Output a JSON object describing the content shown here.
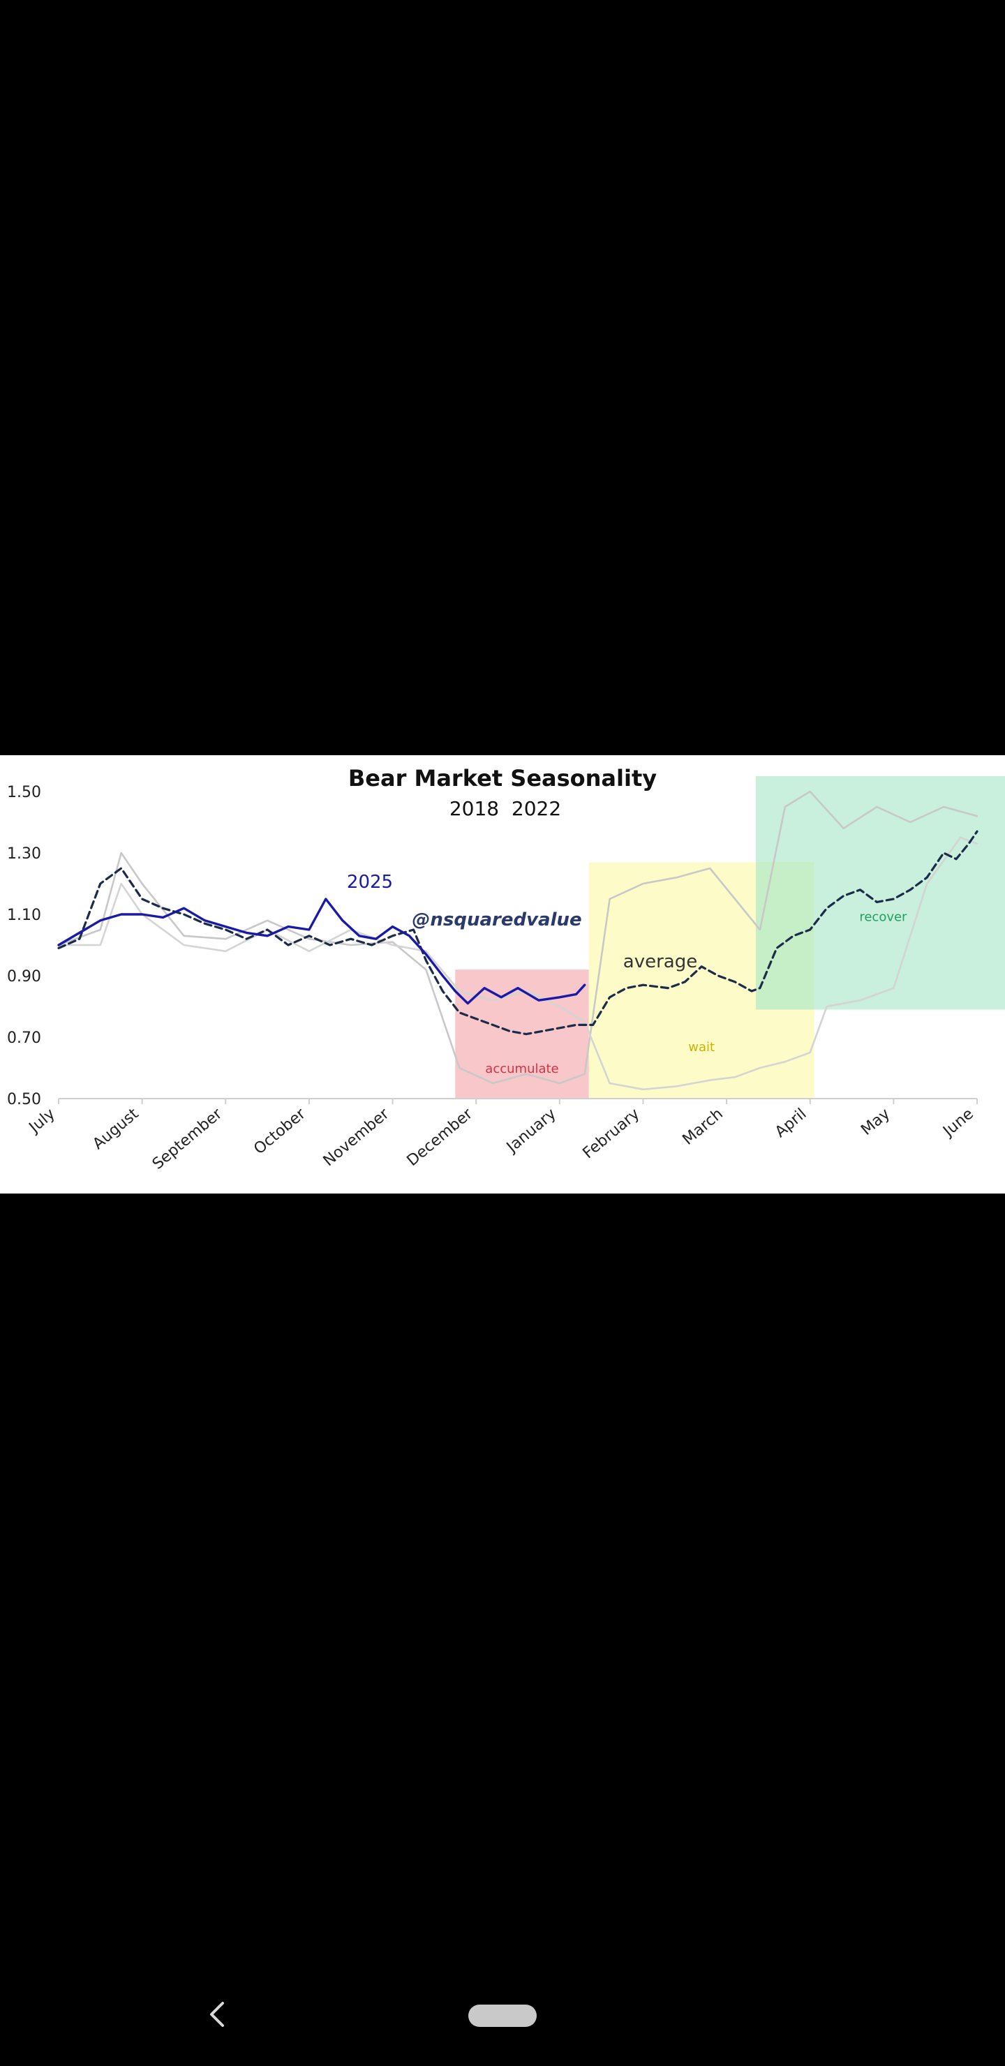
{
  "chart_data": {
    "type": "line",
    "title": "Bear Market Seasonality",
    "subtitle": "2018  2022",
    "watermark": "@nsquaredvalue",
    "xlabel": "",
    "ylabel": "",
    "x_categories": [
      "July",
      "August",
      "September",
      "October",
      "November",
      "December",
      "January",
      "February",
      "March",
      "April",
      "May",
      "June"
    ],
    "y_ticks": [
      "0.50",
      "0.70",
      "0.90",
      "1.10",
      "1.30",
      "1.50"
    ],
    "ylim": [
      0.5,
      1.55
    ],
    "grid": false,
    "series": [
      {
        "name": "2025",
        "label": "2025",
        "color": "#1a1aa8",
        "style": "solid",
        "points": [
          [
            0,
            1.0
          ],
          [
            0.25,
            1.04
          ],
          [
            0.5,
            1.08
          ],
          [
            0.75,
            1.1
          ],
          [
            1,
            1.1
          ],
          [
            1.25,
            1.09
          ],
          [
            1.5,
            1.12
          ],
          [
            1.75,
            1.08
          ],
          [
            2,
            1.06
          ],
          [
            2.25,
            1.04
          ],
          [
            2.5,
            1.03
          ],
          [
            2.75,
            1.06
          ],
          [
            3,
            1.05
          ],
          [
            3.2,
            1.15
          ],
          [
            3.4,
            1.08
          ],
          [
            3.6,
            1.03
          ],
          [
            3.8,
            1.02
          ],
          [
            4,
            1.06
          ],
          [
            4.2,
            1.03
          ],
          [
            4.4,
            0.97
          ],
          [
            4.6,
            0.9
          ],
          [
            4.75,
            0.85
          ],
          [
            4.9,
            0.81
          ],
          [
            5.1,
            0.86
          ],
          [
            5.3,
            0.83
          ],
          [
            5.5,
            0.86
          ],
          [
            5.75,
            0.82
          ],
          [
            6,
            0.83
          ],
          [
            6.2,
            0.84
          ],
          [
            6.3,
            0.87
          ]
        ]
      },
      {
        "name": "average",
        "label": "average",
        "color": "#1b2b4a",
        "style": "dashed",
        "points": [
          [
            0,
            0.99
          ],
          [
            0.25,
            1.02
          ],
          [
            0.5,
            1.2
          ],
          [
            0.75,
            1.25
          ],
          [
            1,
            1.15
          ],
          [
            1.25,
            1.12
          ],
          [
            1.5,
            1.1
          ],
          [
            1.75,
            1.07
          ],
          [
            2,
            1.05
          ],
          [
            2.25,
            1.02
          ],
          [
            2.5,
            1.05
          ],
          [
            2.75,
            1.0
          ],
          [
            3,
            1.03
          ],
          [
            3.25,
            1.0
          ],
          [
            3.5,
            1.02
          ],
          [
            3.75,
            1.0
          ],
          [
            4,
            1.03
          ],
          [
            4.25,
            1.05
          ],
          [
            4.4,
            0.95
          ],
          [
            4.6,
            0.85
          ],
          [
            4.8,
            0.78
          ],
          [
            5,
            0.76
          ],
          [
            5.2,
            0.74
          ],
          [
            5.4,
            0.72
          ],
          [
            5.6,
            0.71
          ],
          [
            5.8,
            0.72
          ],
          [
            6,
            0.73
          ],
          [
            6.2,
            0.74
          ],
          [
            6.4,
            0.74
          ],
          [
            6.6,
            0.83
          ],
          [
            6.8,
            0.86
          ],
          [
            7,
            0.87
          ],
          [
            7.3,
            0.86
          ],
          [
            7.5,
            0.88
          ],
          [
            7.7,
            0.93
          ],
          [
            7.9,
            0.9
          ],
          [
            8.1,
            0.88
          ],
          [
            8.3,
            0.85
          ],
          [
            8.4,
            0.86
          ],
          [
            8.6,
            0.99
          ],
          [
            8.8,
            1.03
          ],
          [
            9.0,
            1.05
          ],
          [
            9.2,
            1.12
          ],
          [
            9.4,
            1.16
          ],
          [
            9.6,
            1.18
          ],
          [
            9.8,
            1.14
          ],
          [
            10,
            1.15
          ],
          [
            10.2,
            1.18
          ],
          [
            10.4,
            1.22
          ],
          [
            10.6,
            1.3
          ],
          [
            10.75,
            1.28
          ],
          [
            10.9,
            1.33
          ],
          [
            11,
            1.37
          ]
        ]
      },
      {
        "name": "2018",
        "label": "2018",
        "color": "#c8c8c8",
        "style": "solid",
        "points": [
          [
            0,
            1.0
          ],
          [
            0.5,
            1.05
          ],
          [
            0.75,
            1.3
          ],
          [
            1,
            1.2
          ],
          [
            1.5,
            1.03
          ],
          [
            2,
            1.02
          ],
          [
            2.5,
            1.08
          ],
          [
            3,
            1.02
          ],
          [
            3.5,
            1.0
          ],
          [
            4,
            1.01
          ],
          [
            4.4,
            0.92
          ],
          [
            4.8,
            0.6
          ],
          [
            5.2,
            0.55
          ],
          [
            5.6,
            0.58
          ],
          [
            6,
            0.55
          ],
          [
            6.3,
            0.58
          ],
          [
            6.6,
            1.15
          ],
          [
            7,
            1.2
          ],
          [
            7.4,
            1.22
          ],
          [
            7.8,
            1.25
          ],
          [
            8.1,
            1.15
          ],
          [
            8.4,
            1.05
          ],
          [
            8.7,
            1.45
          ],
          [
            9,
            1.5
          ],
          [
            9.4,
            1.38
          ],
          [
            9.8,
            1.45
          ],
          [
            10.2,
            1.4
          ],
          [
            10.6,
            1.45
          ],
          [
            11,
            1.42
          ]
        ]
      },
      {
        "name": "2022",
        "label": "2022",
        "color": "#d4d4d4",
        "style": "solid",
        "points": [
          [
            0,
            1.0
          ],
          [
            0.5,
            1.0
          ],
          [
            0.75,
            1.2
          ],
          [
            1,
            1.1
          ],
          [
            1.5,
            1.0
          ],
          [
            2,
            0.98
          ],
          [
            2.5,
            1.05
          ],
          [
            3,
            0.98
          ],
          [
            3.5,
            1.05
          ],
          [
            4,
            1.0
          ],
          [
            4.4,
            0.98
          ],
          [
            4.8,
            0.85
          ],
          [
            5.2,
            0.82
          ],
          [
            5.6,
            0.85
          ],
          [
            6,
            0.8
          ],
          [
            6.3,
            0.75
          ],
          [
            6.6,
            0.55
          ],
          [
            7,
            0.53
          ],
          [
            7.4,
            0.54
          ],
          [
            7.8,
            0.56
          ],
          [
            8.1,
            0.57
          ],
          [
            8.4,
            0.6
          ],
          [
            8.7,
            0.62
          ],
          [
            9,
            0.65
          ],
          [
            9.2,
            0.8
          ],
          [
            9.6,
            0.82
          ],
          [
            10,
            0.86
          ],
          [
            10.4,
            1.2
          ],
          [
            10.8,
            1.35
          ],
          [
            11,
            1.33
          ]
        ]
      }
    ],
    "regions": [
      {
        "label": "accumulate",
        "x_range": [
          4.75,
          6.35
        ],
        "y_range": [
          0.5,
          0.92
        ],
        "fill": "#f4a4a8",
        "text_color": "#d83040"
      },
      {
        "label": "wait",
        "x_range": [
          6.35,
          9.05
        ],
        "y_range": [
          0.5,
          1.27
        ],
        "fill": "#fbfaa8",
        "text_color": "#c8b400"
      },
      {
        "label": "recover",
        "x_range": [
          8.35,
          11.4
        ],
        "y_range": [
          0.79,
          1.55
        ],
        "fill": "#a6e6c6",
        "text_color": "#20a060"
      }
    ]
  },
  "navigation": {
    "back_icon": "chevron-left-icon",
    "home_icon": "home-pill-icon"
  }
}
